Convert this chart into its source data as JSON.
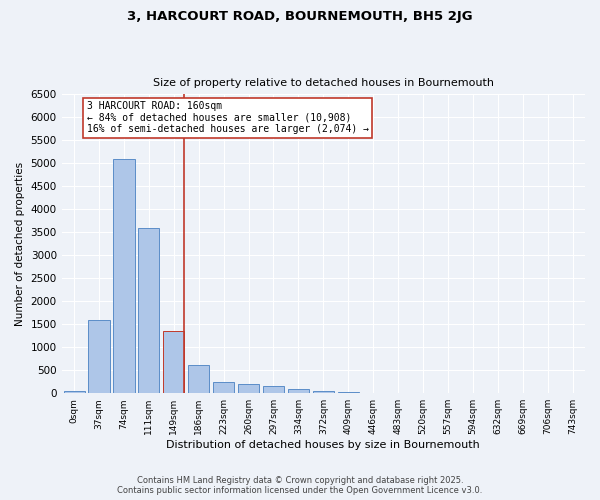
{
  "title": "3, HARCOURT ROAD, BOURNEMOUTH, BH5 2JG",
  "subtitle": "Size of property relative to detached houses in Bournemouth",
  "xlabel": "Distribution of detached houses by size in Bournemouth",
  "ylabel": "Number of detached properties",
  "categories": [
    "0sqm",
    "37sqm",
    "74sqm",
    "111sqm",
    "149sqm",
    "186sqm",
    "223sqm",
    "260sqm",
    "297sqm",
    "334sqm",
    "372sqm",
    "409sqm",
    "446sqm",
    "483sqm",
    "520sqm",
    "557sqm",
    "594sqm",
    "632sqm",
    "669sqm",
    "706sqm",
    "743sqm"
  ],
  "values": [
    50,
    1600,
    5100,
    3600,
    1350,
    620,
    250,
    200,
    160,
    100,
    50,
    20,
    10,
    5,
    3,
    2,
    1,
    1,
    1,
    1,
    1
  ],
  "bar_color": "#aec6e8",
  "bar_edge_color": "#5b8dc8",
  "highlight_bar_index": 4,
  "highlight_bar_color": "#aec6e8",
  "highlight_bar_edge_color": "#c0392b",
  "vline_color": "#c0392b",
  "annotation_text": "3 HARCOURT ROAD: 160sqm\n← 84% of detached houses are smaller (10,908)\n16% of semi-detached houses are larger (2,074) →",
  "annotation_box_facecolor": "#ffffff",
  "annotation_box_edgecolor": "#c0392b",
  "ylim": [
    0,
    6500
  ],
  "yticks": [
    0,
    500,
    1000,
    1500,
    2000,
    2500,
    3000,
    3500,
    4000,
    4500,
    5000,
    5500,
    6000,
    6500
  ],
  "background_color": "#eef2f8",
  "grid_color": "#ffffff",
  "title_fontsize": 9.5,
  "subtitle_fontsize": 8,
  "footer_line1": "Contains HM Land Registry data © Crown copyright and database right 2025.",
  "footer_line2": "Contains public sector information licensed under the Open Government Licence v3.0."
}
